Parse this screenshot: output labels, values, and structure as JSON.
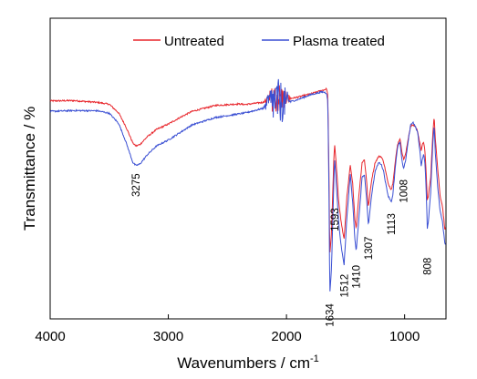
{
  "chart_data": {
    "type": "line",
    "title": "",
    "xlabel": "Wavenumbers / cm",
    "xlabel_superscript": "-1",
    "ylabel": "Transmittance / %",
    "xlim": [
      4000,
      650
    ],
    "x_reversed": true,
    "ylim": [
      0,
      100
    ],
    "y_ticks_shown": false,
    "x_ticks": [
      4000,
      3000,
      2000,
      1000
    ],
    "x_tick_labels": [
      "4000",
      "3000",
      "2000",
      "1000"
    ],
    "grid": false,
    "legend_position": "top-right",
    "series": [
      {
        "name": "Untreated",
        "color": "#e8262c",
        "x": [
          4000,
          3800,
          3600,
          3500,
          3420,
          3360,
          3300,
          3275,
          3240,
          3180,
          3100,
          3000,
          2900,
          2800,
          2600,
          2400,
          2350,
          2200,
          2150,
          2100,
          2000,
          1950,
          1900,
          1800,
          1700,
          1680,
          1660,
          1650,
          1640,
          1634,
          1620,
          1600,
          1593,
          1580,
          1560,
          1540,
          1520,
          1512,
          1490,
          1460,
          1440,
          1420,
          1410,
          1390,
          1360,
          1340,
          1320,
          1307,
          1280,
          1250,
          1220,
          1200,
          1180,
          1160,
          1140,
          1120,
          1113,
          1100,
          1080,
          1060,
          1040,
          1020,
          1008,
          990,
          970,
          950,
          930,
          910,
          890,
          870,
          860,
          850,
          840,
          830,
          820,
          810,
          808,
          800,
          790,
          780,
          770,
          760,
          750,
          740,
          720,
          700,
          680,
          660
        ],
        "y": [
          72.5,
          72.6,
          72.0,
          71.4,
          68.5,
          64.0,
          58.5,
          57.5,
          58.0,
          60.5,
          63.0,
          64.8,
          67.0,
          69.0,
          71.0,
          71.5,
          71.3,
          72.0,
          73.0,
          73.5,
          73.2,
          73.4,
          73.8,
          74.8,
          76.0,
          76.2,
          76.5,
          74.0,
          48.0,
          21.0,
          28.0,
          52.0,
          58.0,
          52.0,
          40.0,
          33.0,
          28.0,
          26.5,
          40.0,
          51.0,
          45.0,
          33.0,
          30.0,
          40.0,
          52.0,
          53.0,
          45.0,
          37.0,
          46.0,
          52.0,
          54.0,
          54.0,
          52.5,
          49.0,
          45.0,
          43.5,
          43.0,
          45.0,
          52.0,
          58.0,
          60.0,
          55.0,
          53.0,
          55.0,
          60.0,
          64.0,
          64.5,
          64.0,
          62.5,
          58.0,
          56.0,
          58.0,
          58.5,
          57.0,
          50.0,
          42.0,
          39.5,
          40.5,
          44.0,
          47.0,
          55.0,
          62.0,
          67.5,
          60.0,
          50.0,
          41.0,
          37.5,
          30.0
        ]
      },
      {
        "name": "Plasma treated",
        "color": "#3a4fd3",
        "x": [
          4000,
          3800,
          3600,
          3500,
          3420,
          3360,
          3300,
          3275,
          3240,
          3180,
          3100,
          3000,
          2900,
          2800,
          2600,
          2400,
          2350,
          2200,
          2150,
          2100,
          2000,
          1950,
          1900,
          1800,
          1700,
          1680,
          1660,
          1650,
          1640,
          1634,
          1620,
          1600,
          1593,
          1580,
          1560,
          1540,
          1520,
          1512,
          1490,
          1460,
          1440,
          1420,
          1410,
          1390,
          1360,
          1340,
          1320,
          1307,
          1280,
          1250,
          1220,
          1200,
          1180,
          1160,
          1140,
          1120,
          1113,
          1100,
          1080,
          1060,
          1040,
          1020,
          1008,
          990,
          970,
          950,
          930,
          910,
          890,
          870,
          860,
          850,
          840,
          830,
          820,
          810,
          808,
          800,
          790,
          780,
          770,
          760,
          750,
          740,
          720,
          700,
          680,
          660
        ],
        "y": [
          69.0,
          69.3,
          69.2,
          68.4,
          65.0,
          59.0,
          52.0,
          51.0,
          51.5,
          54.5,
          57.5,
          59.5,
          62.0,
          64.5,
          67.0,
          68.2,
          68.5,
          70.0,
          72.0,
          72.3,
          72.0,
          72.4,
          73.0,
          74.5,
          75.5,
          75.4,
          75.0,
          72.0,
          42.0,
          7.8,
          16.0,
          44.0,
          53.5,
          46.0,
          33.0,
          25.0,
          20.0,
          18.0,
          33.0,
          48.0,
          39.0,
          26.0,
          22.5,
          32.0,
          47.0,
          48.0,
          39.0,
          31.0,
          41.0,
          49.0,
          52.0,
          51.5,
          49.5,
          45.0,
          41.0,
          39.5,
          39.0,
          41.0,
          50.0,
          57.0,
          59.0,
          52.0,
          50.0,
          53.0,
          59.0,
          64.5,
          65.5,
          64.0,
          62.0,
          55.5,
          51.0,
          53.0,
          54.5,
          53.0,
          45.0,
          34.0,
          30.0,
          32.0,
          37.0,
          42.0,
          51.0,
          59.0,
          64.5,
          55.0,
          44.0,
          36.0,
          32.5,
          25.0
        ]
      }
    ],
    "noise_region": {
      "description_visible": false,
      "x_range": [
        2190,
        1960
      ],
      "center_y": 70.5,
      "amplitude": 6.5
    },
    "annotations": [
      {
        "text": "3275",
        "x": 3275,
        "y": 44.5,
        "rotate": -90
      },
      {
        "text": "1634",
        "x": 1634,
        "y": 1.2,
        "rotate": -90
      },
      {
        "text": "1593",
        "x": 1593,
        "y": 33.0,
        "rotate": -90
      },
      {
        "text": "1512",
        "x": 1512,
        "y": 11.0,
        "rotate": -90
      },
      {
        "text": "1410",
        "x": 1410,
        "y": 14.0,
        "rotate": -90
      },
      {
        "text": "1307",
        "x": 1307,
        "y": 23.5,
        "rotate": -90
      },
      {
        "text": "1113",
        "x": 1113,
        "y": 31.5,
        "rotate": -90
      },
      {
        "text": "1008",
        "x": 1008,
        "y": 42.5,
        "rotate": -90
      },
      {
        "text": "808",
        "x": 808,
        "y": 17.5,
        "rotate": -90
      }
    ]
  }
}
